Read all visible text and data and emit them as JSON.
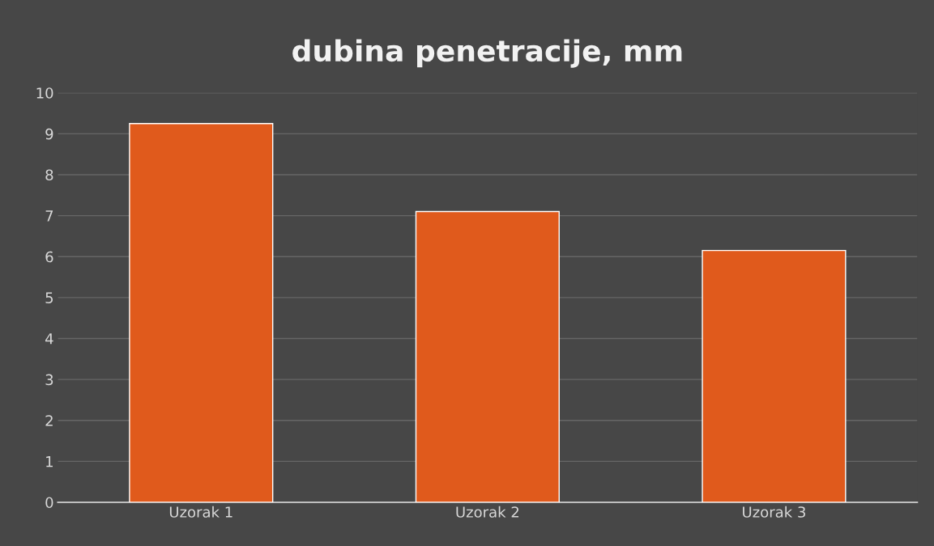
{
  "chart_data": {
    "type": "bar",
    "title": "dubina penetracije, mm",
    "categories": [
      "Uzorak 1",
      "Uzorak 2",
      "Uzorak 3"
    ],
    "values": [
      9.25,
      7.1,
      6.15
    ],
    "color": "#e05a1c",
    "ylim": [
      0,
      10
    ],
    "yticks": [
      0,
      1,
      2,
      3,
      4,
      5,
      6,
      7,
      8,
      9,
      10
    ],
    "grid": "y",
    "legend": false
  }
}
